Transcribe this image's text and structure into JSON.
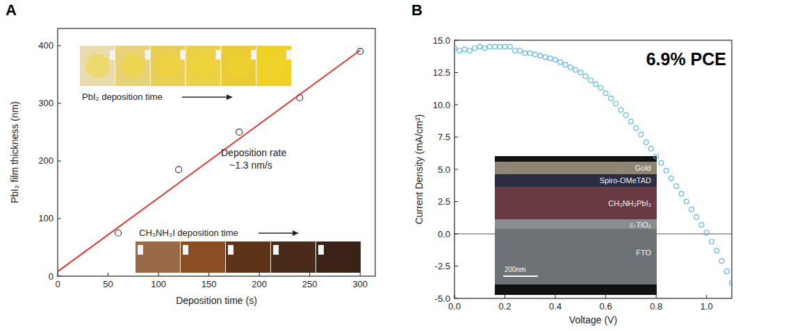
{
  "chart_data": [
    {
      "panel": "A",
      "type": "scatter",
      "x_label": "Deposition time (s)",
      "y_label": "PbI₂ film thickness (nm)",
      "xlim": [
        0,
        315
      ],
      "ylim": [
        0,
        430
      ],
      "xticks": [
        0,
        50,
        100,
        150,
        200,
        250,
        300
      ],
      "yticks": [
        0,
        100,
        200,
        300,
        400
      ],
      "annotations": [
        {
          "lines": [
            "Deposition rate",
            "~1.3 nm/s"
          ]
        }
      ],
      "insets": [
        {
          "label": "PbI₂ deposition time"
        },
        {
          "label": "CH₃NH₃I deposition time"
        }
      ],
      "series": [
        {
          "type": "scatter",
          "marker": "circle",
          "color": "#333333",
          "x": [
            60,
            120,
            180,
            240,
            300
          ],
          "values": [
            75,
            185,
            250,
            310,
            390
          ]
        },
        {
          "type": "line",
          "line_style": "solid",
          "color": "#e53935",
          "x": [
            0,
            300
          ],
          "values": [
            8,
            392
          ]
        }
      ]
    },
    {
      "panel": "B",
      "type": "line",
      "title": "6.9% PCE",
      "x_label": "Voltage (V)",
      "y_label": "Current Density (mA/cm²)",
      "xlim": [
        0,
        1.1
      ],
      "ylim": [
        -5,
        15
      ],
      "xticks": [
        {
          "value": 0,
          "label": "0.0"
        },
        {
          "value": 0.2,
          "label": "0.2"
        },
        {
          "value": 0.4,
          "label": "0.4"
        },
        {
          "value": 0.6,
          "label": "0.6"
        },
        {
          "value": 0.8,
          "label": "0.8"
        },
        {
          "value": 1,
          "label": "1.0"
        }
      ],
      "yticks": [
        {
          "value": -5,
          "label": "-5.0"
        },
        {
          "value": -2.5,
          "label": "-2.5"
        },
        {
          "value": 0,
          "label": "0.0"
        },
        {
          "value": 2.5,
          "label": "2.5"
        },
        {
          "value": 5,
          "label": "5.0"
        },
        {
          "value": 7.5,
          "label": "7.5"
        },
        {
          "value": 10,
          "label": "10.0"
        },
        {
          "value": 12.5,
          "label": "12.5"
        },
        {
          "value": 15,
          "label": "15.0"
        }
      ],
      "inset": {
        "layers": [
          "Gold",
          "Spiro-OMeTAD",
          "CH₃NH₃PbI₃",
          "c-TiO₂",
          "FTO"
        ],
        "scale_bar": "200nm"
      },
      "series": [
        {
          "marker": "circle",
          "line_style": "none",
          "color": "#5bb8e8",
          "x": [
            0,
            0.02,
            0.04,
            0.06,
            0.08,
            0.1,
            0.12,
            0.14,
            0.16,
            0.18,
            0.2,
            0.22,
            0.24,
            0.26,
            0.28,
            0.3,
            0.32,
            0.34,
            0.36,
            0.38,
            0.4,
            0.42,
            0.44,
            0.46,
            0.48,
            0.5,
            0.52,
            0.54,
            0.56,
            0.58,
            0.6,
            0.62,
            0.64,
            0.66,
            0.68,
            0.7,
            0.72,
            0.74,
            0.76,
            0.78,
            0.8,
            0.82,
            0.84,
            0.86,
            0.88,
            0.9,
            0.92,
            0.94,
            0.96,
            0.98,
            1,
            1.02,
            1.04,
            1.06,
            1.08,
            1.1
          ],
          "values": [
            14.4,
            14.2,
            14.3,
            14.2,
            14.4,
            14.5,
            14.4,
            14.5,
            14.5,
            14.5,
            14.5,
            14.5,
            14.2,
            14.2,
            14.0,
            14.0,
            13.9,
            13.8,
            13.7,
            13.6,
            13.5,
            13.3,
            13.1,
            12.9,
            12.7,
            12.5,
            12.2,
            11.9,
            11.6,
            11.3,
            10.9,
            10.5,
            10.1,
            9.6,
            9.2,
            8.7,
            8.2,
            7.7,
            7.1,
            6.6,
            6.0,
            5.5,
            4.9,
            4.3,
            3.7,
            3.1,
            2.5,
            1.9,
            1.3,
            0.7,
            0.1,
            -0.6,
            -1.3,
            -2.1,
            -2.9,
            -3.8
          ]
        }
      ]
    }
  ]
}
